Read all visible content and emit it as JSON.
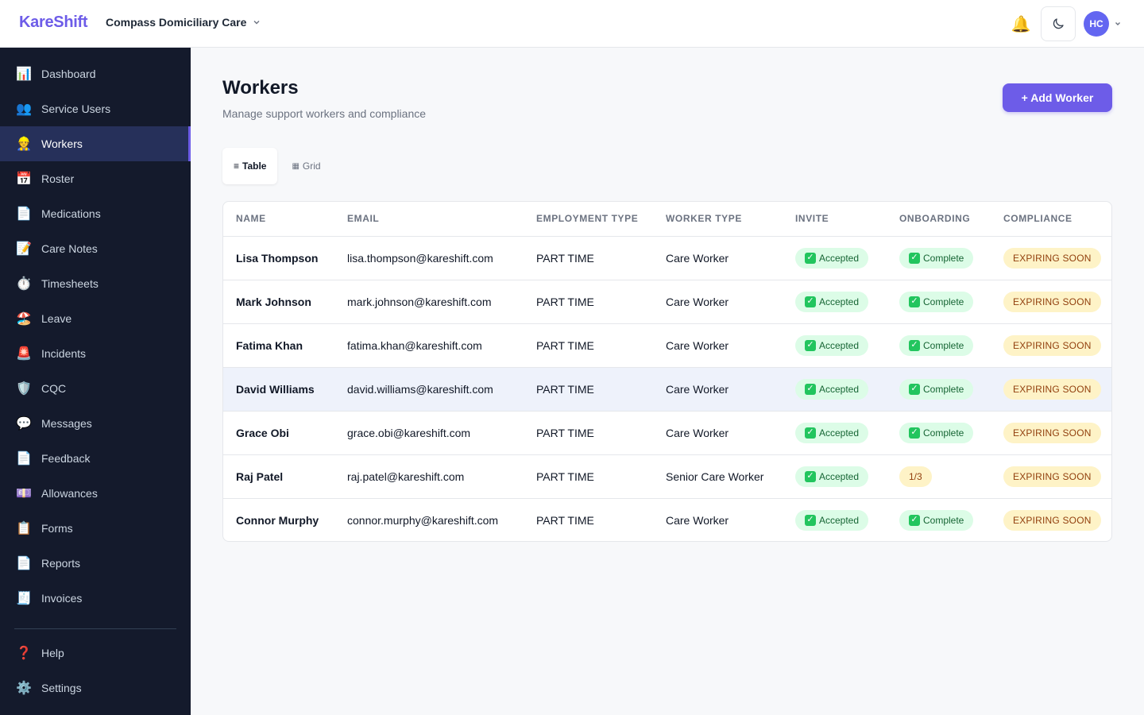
{
  "topbar": {
    "brand": "KareShift",
    "org_name": "Compass Domiciliary Care",
    "avatar_initials": "HC"
  },
  "sidebar": {
    "items": [
      {
        "label": "Dashboard",
        "icon": "📊"
      },
      {
        "label": "Service Users",
        "icon": "👥"
      },
      {
        "label": "Workers",
        "icon": "👷",
        "active": true
      },
      {
        "label": "Roster",
        "icon": "📅"
      },
      {
        "label": "Medications",
        "icon": "📄"
      },
      {
        "label": "Care Notes",
        "icon": "📝"
      },
      {
        "label": "Timesheets",
        "icon": "⏱️"
      },
      {
        "label": "Leave",
        "icon": "🏖️"
      },
      {
        "label": "Incidents",
        "icon": "🚨"
      },
      {
        "label": "CQC",
        "icon": "🛡️"
      },
      {
        "label": "Messages",
        "icon": "💬"
      },
      {
        "label": "Feedback",
        "icon": "📄"
      },
      {
        "label": "Allowances",
        "icon": "💷"
      },
      {
        "label": "Forms",
        "icon": "📋"
      },
      {
        "label": "Reports",
        "icon": "📄"
      },
      {
        "label": "Invoices",
        "icon": "🧾"
      }
    ],
    "bottom": [
      {
        "label": "Help",
        "icon": "❓"
      },
      {
        "label": "Settings",
        "icon": "⚙️"
      }
    ]
  },
  "page": {
    "title": "Workers",
    "subtitle": "Manage support workers and compliance",
    "add_button": "+ Add Worker",
    "view_table": "Table",
    "view_grid": "Grid"
  },
  "table": {
    "headers": [
      "NAME",
      "EMAIL",
      "EMPLOYMENT TYPE",
      "WORKER TYPE",
      "INVITE",
      "ONBOARDING",
      "COMPLIANCE"
    ],
    "rows": [
      {
        "name": "Lisa Thompson",
        "email": "lisa.thompson@kareshift.com",
        "employment": "PART TIME",
        "worker_type": "Care Worker",
        "invite": "Accepted",
        "onboarding": "Complete",
        "compliance": "EXPIRING SOON"
      },
      {
        "name": "Mark Johnson",
        "email": "mark.johnson@kareshift.com",
        "employment": "PART TIME",
        "worker_type": "Care Worker",
        "invite": "Accepted",
        "onboarding": "Complete",
        "compliance": "EXPIRING SOON"
      },
      {
        "name": "Fatima Khan",
        "email": "fatima.khan@kareshift.com",
        "employment": "PART TIME",
        "worker_type": "Care Worker",
        "invite": "Accepted",
        "onboarding": "Complete",
        "compliance": "EXPIRING SOON"
      },
      {
        "name": "David Williams",
        "email": "david.williams@kareshift.com",
        "employment": "PART TIME",
        "worker_type": "Care Worker",
        "invite": "Accepted",
        "onboarding": "Complete",
        "compliance": "EXPIRING SOON"
      },
      {
        "name": "Grace Obi",
        "email": "grace.obi@kareshift.com",
        "employment": "PART TIME",
        "worker_type": "Care Worker",
        "invite": "Accepted",
        "onboarding": "Complete",
        "compliance": "EXPIRING SOON"
      },
      {
        "name": "Raj Patel",
        "email": "raj.patel@kareshift.com",
        "employment": "PART TIME",
        "worker_type": "Senior Care Worker",
        "invite": "Accepted",
        "onboarding": "1/3",
        "compliance": "EXPIRING SOON"
      },
      {
        "name": "Connor Murphy",
        "email": "connor.murphy@kareshift.com",
        "employment": "PART TIME",
        "worker_type": "Care Worker",
        "invite": "Accepted",
        "onboarding": "Complete",
        "compliance": "EXPIRING SOON"
      }
    ]
  },
  "colors": {
    "accent": "#6d5ce8",
    "sidebar_bg": "#141a2c",
    "sidebar_active": "#26305a",
    "success_bg": "#dcfce7",
    "warning_bg": "#fef3c7"
  }
}
